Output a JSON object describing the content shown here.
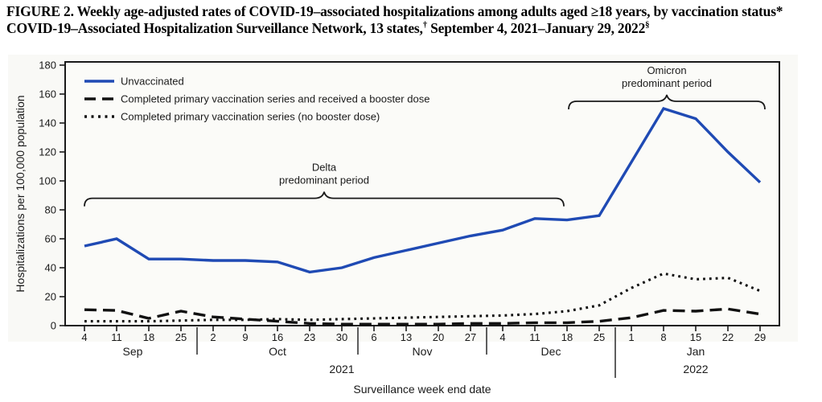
{
  "title": {
    "line1": "FIGURE 2. Weekly age-adjusted rates of COVID-19–associated hospitalizations among adults aged ≥18 years, by vaccination status*",
    "line2_main": "COVID-19–Associated Hospitalization Surveillance Network, 13 states,",
    "line2_dagger": "†",
    "line2_rest": " September 4, 2021–January 29, 2022",
    "line2_section": "§"
  },
  "chart_data": {
    "type": "line",
    "title": "Weekly age-adjusted rates of COVID-19-associated hospitalizations among adults aged >=18 years, by vaccination status",
    "xlabel": "Surveillance week end date",
    "ylabel": "Hospitalizations per 100,000 population",
    "ylim": [
      0,
      180
    ],
    "ytick_interval": 20,
    "grid": false,
    "legend_position": "top-left",
    "plot_bg": "#f9f9f6",
    "frame_color": "#1a1a1a",
    "text_color": "#1a1a1a",
    "categories": [
      "Sep 4",
      "Sep 11",
      "Sep 18",
      "Sep 25",
      "Oct 2",
      "Oct 9",
      "Oct 16",
      "Oct 23",
      "Oct 30",
      "Nov 6",
      "Nov 13",
      "Nov 20",
      "Nov 27",
      "Dec 4",
      "Dec 11",
      "Dec 18",
      "Dec 25",
      "Jan 1",
      "Jan 8",
      "Jan 15",
      "Jan 22",
      "Jan 29"
    ],
    "week_labels": [
      "4",
      "11",
      "18",
      "25",
      "2",
      "9",
      "16",
      "23",
      "30",
      "6",
      "13",
      "20",
      "27",
      "4",
      "11",
      "18",
      "25",
      "1",
      "8",
      "15",
      "22",
      "29"
    ],
    "months": [
      {
        "label": "Sep",
        "weeks": 4
      },
      {
        "label": "Oct",
        "weeks": 5
      },
      {
        "label": "Nov",
        "weeks": 4
      },
      {
        "label": "Dec",
        "weeks": 4
      },
      {
        "label": "Jan",
        "weeks": 5
      }
    ],
    "years": [
      {
        "label": "2021",
        "weeks": 17
      },
      {
        "label": "2022",
        "weeks": 5
      }
    ],
    "series": [
      {
        "name": "Unvaccinated",
        "style": "solid",
        "color": "#1f4ab4",
        "values": [
          55,
          60,
          46,
          46,
          45,
          45,
          44,
          37,
          40,
          47,
          52,
          57,
          62,
          66,
          74,
          73,
          76,
          113,
          150,
          143,
          120,
          99
        ]
      },
      {
        "name": "Completed primary vaccination series and received a booster dose",
        "style": "dashed",
        "color": "#111111",
        "values": [
          11,
          10.5,
          5,
          10,
          6,
          4.5,
          3,
          1.5,
          1,
          1,
          1,
          1,
          1.5,
          1.5,
          2,
          2,
          3,
          5.5,
          10.5,
          10,
          11.5,
          8
        ]
      },
      {
        "name": "Completed primary vaccination series (no booster dose)",
        "style": "dotted",
        "color": "#111111",
        "values": [
          3,
          3,
          3,
          3.5,
          4,
          4,
          4.5,
          4,
          4.5,
          5,
          5.5,
          6,
          6.5,
          7,
          8,
          10,
          14,
          26,
          36,
          32,
          33,
          24
        ]
      }
    ],
    "annotations": [
      {
        "lines": [
          "Delta",
          "predominant period"
        ],
        "from_index": 0,
        "to_index": 14.9,
        "y_value": 88
      },
      {
        "lines": [
          "Omicron",
          "predominant period"
        ],
        "from_index": 15.05,
        "to_index": 21.15,
        "y_value": 155
      }
    ]
  }
}
